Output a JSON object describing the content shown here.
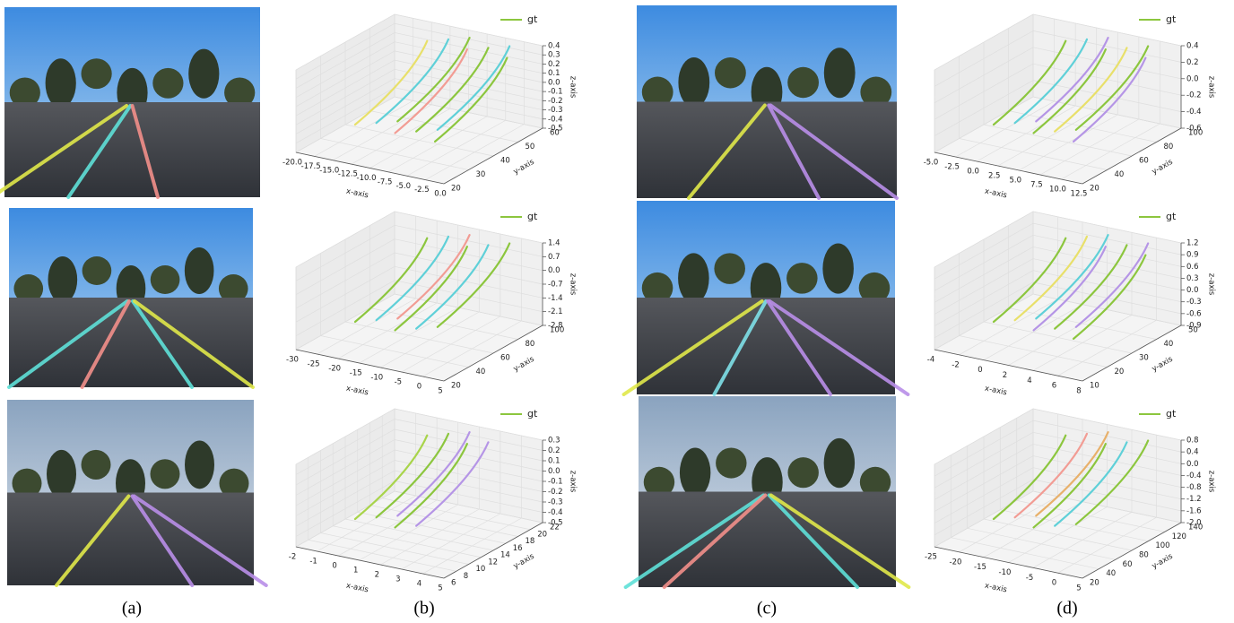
{
  "captions": [
    "(a)",
    "(b)",
    "(c)",
    "(d)"
  ],
  "plots": [
    {
      "legend": "gt",
      "xlabel": "x-axis",
      "ylabel": "y-axis",
      "zlabel": "z-axis",
      "xticks": [
        "-20.0",
        "-17.5",
        "-15.0",
        "-12.5",
        "-10.0",
        "-7.5",
        "-5.0",
        "-2.5",
        "0.0"
      ],
      "yticks": [
        "20",
        "30",
        "40",
        "50",
        "60"
      ],
      "zticks": [
        "0.4",
        "0.3",
        "0.2",
        "0.1",
        "0.0",
        "-0.1",
        "-0.2",
        "-0.3",
        "-0.4",
        "-0.5"
      ]
    },
    {
      "legend": "gt",
      "xlabel": "x-axis",
      "ylabel": "y-axis",
      "zlabel": "z-axis",
      "xticks": [
        "-30",
        "-25",
        "-20",
        "-15",
        "-10",
        "-5",
        "0",
        "5"
      ],
      "yticks": [
        "20",
        "40",
        "60",
        "80",
        "100"
      ],
      "zticks": [
        "1.4",
        "0.7",
        "0.0",
        "-0.7",
        "-1.4",
        "-2.1",
        "-2.8"
      ]
    },
    {
      "legend": "gt",
      "xlabel": "x-axis",
      "ylabel": "y-axis",
      "zlabel": "z-axis",
      "xticks": [
        "-2",
        "-1",
        "0",
        "1",
        "2",
        "3",
        "4",
        "5"
      ],
      "yticks": [
        "6",
        "8",
        "10",
        "12",
        "14",
        "16",
        "18",
        "20",
        "22"
      ],
      "zticks": [
        "0.3",
        "0.2",
        "0.1",
        "0.0",
        "-0.1",
        "-0.2",
        "-0.3",
        "-0.4",
        "-0.5"
      ]
    },
    {
      "legend": "gt",
      "xlabel": "x-axis",
      "ylabel": "y-axis",
      "zlabel": "z-axis",
      "xticks": [
        "-5.0",
        "-2.5",
        "0.0",
        "2.5",
        "5.0",
        "7.5",
        "10.0",
        "12.5"
      ],
      "yticks": [
        "20",
        "40",
        "60",
        "80",
        "100"
      ],
      "zticks": [
        "0.4",
        "0.2",
        "0.0",
        "-0.2",
        "-0.4",
        "-0.6"
      ]
    },
    {
      "legend": "gt",
      "xlabel": "x-axis",
      "ylabel": "y-axis",
      "zlabel": "z-axis",
      "xticks": [
        "-4",
        "-2",
        "0",
        "2",
        "4",
        "6",
        "8"
      ],
      "yticks": [
        "10",
        "20",
        "30",
        "40",
        "50"
      ],
      "zticks": [
        "1.2",
        "0.9",
        "0.6",
        "0.3",
        "0.0",
        "-0.3",
        "-0.6",
        "-0.9"
      ]
    },
    {
      "legend": "gt",
      "xlabel": "x-axis",
      "ylabel": "y-axis",
      "zlabel": "z-axis",
      "xticks": [
        "-25",
        "-20",
        "-15",
        "-10",
        "-5",
        "0",
        "5"
      ],
      "yticks": [
        "20",
        "40",
        "60",
        "80",
        "100",
        "120",
        "140"
      ],
      "zticks": [
        "0.8",
        "0.4",
        "0.0",
        "-0.4",
        "-0.8",
        "-1.2",
        "-1.6",
        "-2.0"
      ]
    }
  ]
}
